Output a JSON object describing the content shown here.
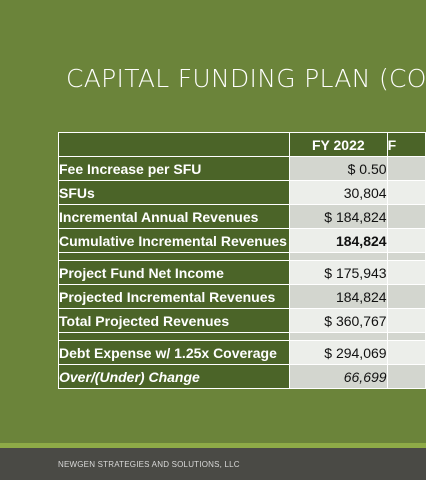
{
  "title": "CAPITAL FUNDING PLAN (CON",
  "table": {
    "header": {
      "col1": "FY 2022",
      "col2": "F"
    },
    "rows": [
      {
        "label": "Fee Increase per SFU",
        "value": "$ 0.50",
        "next": ""
      },
      {
        "label": "SFUs",
        "value": "30,804",
        "next": ""
      },
      {
        "label": "Incremental Annual Revenues",
        "value": "$ 184,824",
        "next": ""
      },
      {
        "label": "Cumulative Incremental Revenues",
        "value": "184,824",
        "next": ""
      },
      {
        "label": "Project Fund Net Income",
        "value": "$ 175,943",
        "next": ""
      },
      {
        "label": "Projected Incremental Revenues",
        "value": "184,824",
        "next": ""
      },
      {
        "label": "Total Projected Revenues",
        "value": "$ 360,767",
        "next": ""
      },
      {
        "label": "Debt Expense w/ 1.25x Coverage",
        "value": "$ 294,069",
        "next": ""
      },
      {
        "label": "Over/(Under) Change",
        "value": "66,699",
        "next": ""
      }
    ]
  },
  "footer": {
    "text": "NEWGEN STRATEGIES AND SOLUTIONS, LLC"
  },
  "colors": {
    "background": "#6b843a",
    "header_cell": "#4b6428",
    "accent": "#8eab47",
    "footer": "#4a4a45"
  }
}
